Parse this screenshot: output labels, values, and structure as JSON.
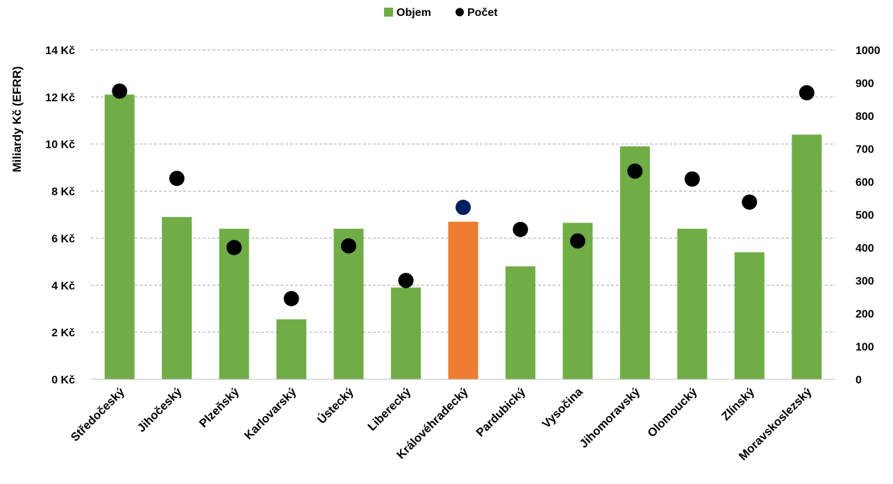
{
  "chart_data": {
    "type": "bar",
    "legend": {
      "position": "top",
      "entries": [
        {
          "label": "Objem",
          "marker": "square",
          "color": "#70ad47"
        },
        {
          "label": "Počet",
          "marker": "circle",
          "color": "#000000"
        }
      ]
    },
    "categories": [
      "Středočeský",
      "Jihočeský",
      "Plzeňský",
      "Karlovarský",
      "Ústecký",
      "Liberecký",
      "Královéhradecký",
      "Pardubický",
      "Vysočina",
      "Jihomoravský",
      "Olomoucký",
      "Zlínský",
      "Moravskoslezský"
    ],
    "ylabel": "Miliardy Kč (EFRR)",
    "ylim": [
      0,
      14
    ],
    "y_ticks": [
      "0 Kč",
      "2 Kč",
      "4 Kč",
      "6 Kč",
      "8 Kč",
      "10 Kč",
      "12 Kč",
      "14 Kč"
    ],
    "y2lim": [
      0,
      1000
    ],
    "y2_ticks": [
      "0",
      "100",
      "200",
      "300",
      "400",
      "500",
      "600",
      "700",
      "800",
      "900",
      "1000"
    ],
    "grid": true,
    "highlight_category": "Královéhradecký",
    "series": [
      {
        "name": "Objem",
        "type": "bar",
        "axis": "left",
        "color": "#70ad47",
        "highlight_color": "#ed7d31",
        "values": [
          12.1,
          6.9,
          6.4,
          2.55,
          6.4,
          3.9,
          6.7,
          4.8,
          6.65,
          9.9,
          6.4,
          5.4,
          10.4
        ]
      },
      {
        "name": "Počet",
        "type": "scatter",
        "axis": "right",
        "color": "#000000",
        "highlight_color": "#002060",
        "values": [
          875,
          610,
          400,
          245,
          405,
          300,
          522,
          455,
          420,
          632,
          608,
          538,
          870
        ]
      }
    ]
  }
}
